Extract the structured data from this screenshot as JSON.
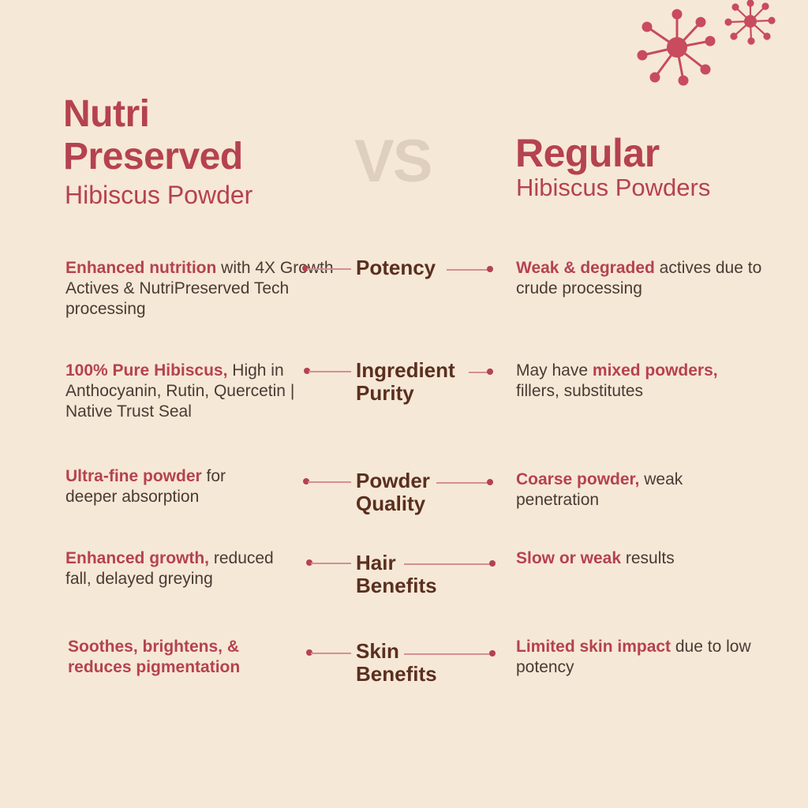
{
  "brand": {
    "title_line1": "Nutri",
    "title_line2": "Preserved",
    "subtitle": "Hibiscus Powder"
  },
  "vs": "VS",
  "regular": {
    "title": "Regular",
    "subtitle": "Hibiscus Powders"
  },
  "colors": {
    "accent": "#b5424f",
    "background": "#f6e8d6",
    "label": "#5a2f1f",
    "body_text": "#4a3a34",
    "vs": "#dfcfbf"
  },
  "rows": [
    {
      "label_line1": "Potency",
      "label_line2": "",
      "left_highlight": "Enhanced nutrition",
      "left_rest": " with 4X Growth Actives & NutriPreserved Tech processing",
      "right_pre": "",
      "right_highlight": "Weak & degraded",
      "right_rest": " actives due to crude processing"
    },
    {
      "label_line1": "Ingredient",
      "label_line2": "Purity",
      "left_highlight": "100% Pure Hibiscus,",
      "left_rest": " High in Anthocyanin, Rutin, Quercetin | Native Trust Seal",
      "right_pre": "May have ",
      "right_highlight": "mixed powders,",
      "right_rest": " fillers, substitutes"
    },
    {
      "label_line1": "Powder",
      "label_line2": "Quality",
      "left_highlight": "Ultra-fine powder",
      "left_rest": " for deeper absorption",
      "right_pre": "",
      "right_highlight": "Coarse powder,",
      "right_rest": " weak penetration"
    },
    {
      "label_line1": "Hair",
      "label_line2": "Benefits",
      "left_highlight": "Enhanced growth,",
      "left_rest": " reduced fall, delayed greying",
      "right_pre": "",
      "right_highlight": "Slow or weak",
      "right_rest": " results"
    },
    {
      "label_line1": "Skin",
      "label_line2": "Benefits",
      "left_highlight": "Soothes, brightens, & reduces pigmentation",
      "left_rest": "",
      "right_pre": "",
      "right_highlight": "Limited skin impact",
      "right_rest": " due to low potency"
    }
  ],
  "decor": {
    "icon": "virus-molecule-icon"
  }
}
